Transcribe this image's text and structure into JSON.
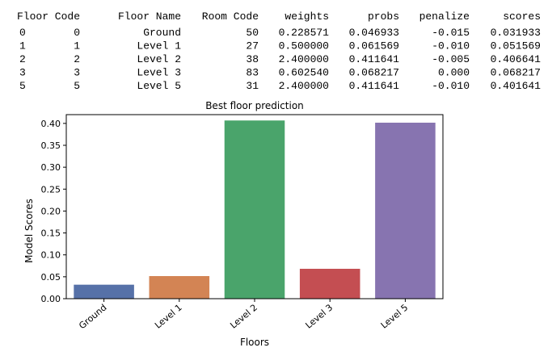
{
  "dataframe": {
    "columns": [
      "Floor Code",
      "Floor Name",
      "Room Code",
      "weights",
      "probs",
      "penalize",
      "scores"
    ],
    "rows": [
      {
        "index": "0",
        "cells": [
          "0",
          "Ground",
          "50",
          "0.228571",
          "0.046933",
          "-0.015",
          "0.031933"
        ]
      },
      {
        "index": "1",
        "cells": [
          "1",
          "Level 1",
          "27",
          "0.500000",
          "0.061569",
          "-0.010",
          "0.051569"
        ]
      },
      {
        "index": "2",
        "cells": [
          "2",
          "Level 2",
          "38",
          "2.400000",
          "0.411641",
          "-0.005",
          "0.406641"
        ]
      },
      {
        "index": "3",
        "cells": [
          "3",
          "Level 3",
          "83",
          "0.602540",
          "0.068217",
          "0.000",
          "0.068217"
        ]
      },
      {
        "index": "5",
        "cells": [
          "5",
          "Level 5",
          "31",
          "2.400000",
          "0.411641",
          "-0.010",
          "0.401641"
        ]
      }
    ]
  },
  "chart_data": {
    "type": "bar",
    "title": "Best floor prediction",
    "xlabel": "Floors",
    "ylabel": "Model Scores",
    "categories": [
      "Ground",
      "Level 1",
      "Level 2",
      "Level 3",
      "Level 5"
    ],
    "values": [
      0.031933,
      0.051569,
      0.406641,
      0.068217,
      0.401641
    ],
    "colors": [
      "#5671a8",
      "#d38454",
      "#4aa46b",
      "#c44e52",
      "#8774b0"
    ],
    "ylim": [
      0,
      0.42
    ],
    "yticks": [
      0.0,
      0.05,
      0.1,
      0.15,
      0.2,
      0.25,
      0.3,
      0.35,
      0.4
    ],
    "ytick_labels": [
      "0.00",
      "0.05",
      "0.10",
      "0.15",
      "0.20",
      "0.25",
      "0.30",
      "0.35",
      "0.40"
    ],
    "grid": false
  }
}
